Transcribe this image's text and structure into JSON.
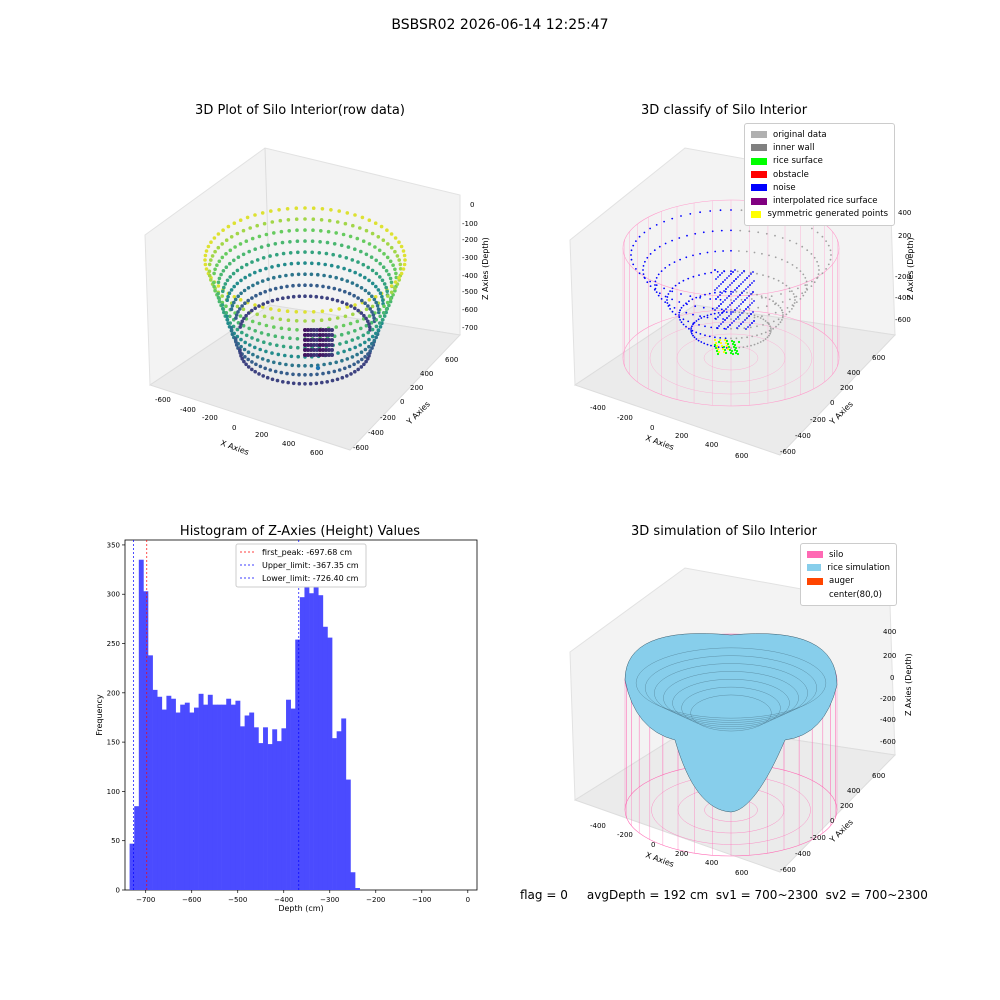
{
  "suptitle": "BSBSR02 2026-06-14 12:25:47",
  "panels": {
    "raw": {
      "title": "3D Plot of Silo Interior(row data)",
      "xlabel": "X Axies",
      "ylabel": "Y Axies",
      "zlabel": "Z Axies (Depth)",
      "xticks": [
        "-600",
        "-400",
        "-200",
        "0",
        "200",
        "400",
        "600"
      ],
      "yticks": [
        "-600",
        "-400",
        "-200",
        "0",
        "200",
        "400",
        "600"
      ],
      "zticks": [
        "0",
        "-100",
        "-200",
        "-300",
        "-400",
        "-500",
        "-600",
        "-700"
      ]
    },
    "classify": {
      "title": "3D classify of Silo Interior",
      "xlabel": "X Axies",
      "ylabel": "Y Axies",
      "zlabel": "Z Axies (Depth)",
      "xticks": [
        "-400",
        "-200",
        "0",
        "200",
        "400",
        "600"
      ],
      "yticks": [
        "-600",
        "-400",
        "-200",
        "0",
        "200",
        "400",
        "600"
      ],
      "zticks": [
        "400",
        "200",
        "0",
        "-200",
        "-400",
        "-600"
      ],
      "legend": [
        {
          "label": "original data",
          "color": "#b0b0b0"
        },
        {
          "label": "inner wall",
          "color": "#808080"
        },
        {
          "label": "rice surface",
          "color": "#00ff00"
        },
        {
          "label": "obstacle",
          "color": "#ff0000"
        },
        {
          "label": "noise",
          "color": "#0000ff"
        },
        {
          "label": "interpolated rice surface",
          "color": "#800080"
        },
        {
          "label": "symmetric generated points",
          "color": "#ffff00"
        }
      ]
    },
    "simulation": {
      "title": "3D simulation of Silo Interior",
      "xlabel": "X Axies",
      "ylabel": "Y Axies",
      "zlabel": "Z Axies (Depth)",
      "xticks": [
        "-400",
        "-200",
        "0",
        "200",
        "400",
        "600"
      ],
      "yticks": [
        "-600",
        "-400",
        "-200",
        "0",
        "200",
        "400",
        "600"
      ],
      "zticks": [
        "400",
        "200",
        "0",
        "-200",
        "-400",
        "-600"
      ],
      "legend": [
        {
          "label": "silo",
          "color": "#ff69b4"
        },
        {
          "label": "rice simulation",
          "color": "#87ceeb"
        },
        {
          "label": "auger",
          "color": "#ff4500"
        },
        {
          "label": "center(80,0)",
          "color": "#ffffff"
        }
      ]
    }
  },
  "footer": "flag = 0     avgDepth = 192 cm  sv1 = 700~2300  sv2 = 700~2300",
  "chart_data": {
    "type": "bar",
    "title": "Histogram of Z-Axies (Height) Values",
    "xlabel": "Depth (cm)",
    "ylabel": "Frequency",
    "xlim": [
      -745,
      20
    ],
    "ylim": [
      0,
      355
    ],
    "xticks": [
      -700,
      -600,
      -500,
      -400,
      -300,
      -200,
      -100,
      0
    ],
    "yticks": [
      0,
      50,
      100,
      150,
      200,
      250,
      300,
      350
    ],
    "bar_color": "#4b4bff",
    "bin_start": -735,
    "bin_width": 10,
    "values": [
      47,
      85,
      335,
      303,
      238,
      203,
      196,
      183,
      197,
      194,
      180,
      188,
      190,
      180,
      185,
      199,
      188,
      198,
      188,
      188,
      188,
      194,
      188,
      192,
      166,
      177,
      180,
      165,
      149,
      165,
      148,
      163,
      151,
      164,
      193,
      184,
      254,
      297,
      339,
      301,
      312,
      299,
      267,
      256,
      154,
      161,
      174,
      112,
      18,
      2
    ],
    "vlines": [
      {
        "label": "first_peak: -697.68 cm",
        "x": -697.68,
        "color": "#ff0000"
      },
      {
        "label": "Upper_limit: -367.35 cm",
        "x": -367.35,
        "color": "#0000ff"
      },
      {
        "label": "Lower_limit: -726.40 cm",
        "x": -726.4,
        "color": "#0000ff"
      }
    ],
    "legend_position": "upper center"
  }
}
